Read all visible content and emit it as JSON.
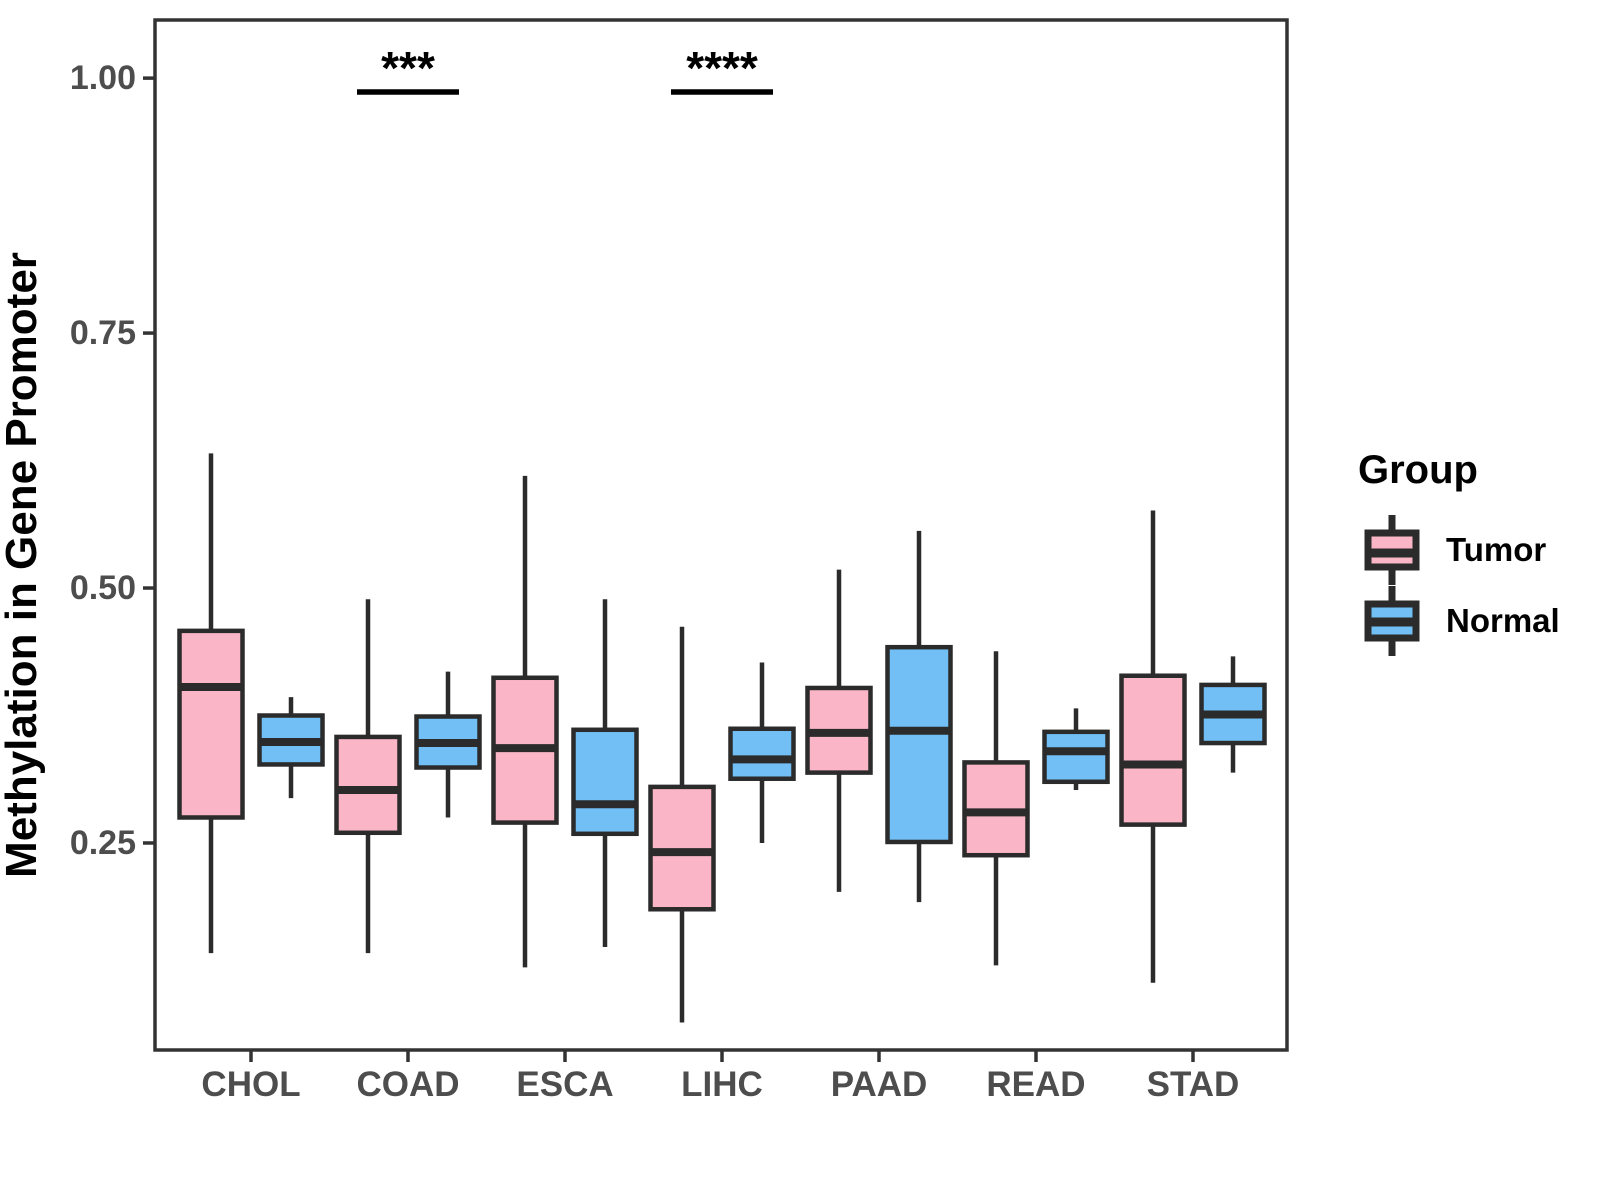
{
  "page": {
    "background": "#ffffff"
  },
  "chart_data": {
    "type": "boxplot",
    "title": "",
    "xlabel": "",
    "ylabel": "Methylation in Gene Promoter",
    "categories": [
      "CHOL",
      "COAD",
      "ESCA",
      "LIHC",
      "PAAD",
      "READ",
      "STAD"
    ],
    "groups": [
      "Tumor",
      "Normal"
    ],
    "group_colors": {
      "Tumor": "#FAB6C6",
      "Normal": "#72BFF5"
    },
    "box_border_color": "#2B2B2B",
    "panel_border_color": "#333333",
    "axis_text_color": "#4D4D4D",
    "axis_title_color": "#000000",
    "ylim": [
      0.047,
      1.057
    ],
    "grid": "off",
    "legend_position": "right",
    "yticks": [
      {
        "value": 0.25,
        "label": "0.25"
      },
      {
        "value": 0.5,
        "label": "0.50"
      },
      {
        "value": 0.75,
        "label": "0.75"
      },
      {
        "value": 1.0,
        "label": "1.00"
      }
    ],
    "series": [
      {
        "name": "Tumor",
        "boxes": [
          {
            "category": "CHOL",
            "low": 0.142,
            "q1": 0.275,
            "median": 0.403,
            "q3": 0.458,
            "high": 0.632
          },
          {
            "category": "COAD",
            "low": 0.142,
            "q1": 0.26,
            "median": 0.302,
            "q3": 0.354,
            "high": 0.489
          },
          {
            "category": "ESCA",
            "low": 0.128,
            "q1": 0.27,
            "median": 0.343,
            "q3": 0.412,
            "high": 0.61
          },
          {
            "category": "LIHC",
            "low": 0.074,
            "q1": 0.185,
            "median": 0.241,
            "q3": 0.305,
            "high": 0.462
          },
          {
            "category": "PAAD",
            "low": 0.202,
            "q1": 0.319,
            "median": 0.358,
            "q3": 0.402,
            "high": 0.518
          },
          {
            "category": "READ",
            "low": 0.13,
            "q1": 0.238,
            "median": 0.28,
            "q3": 0.329,
            "high": 0.438
          },
          {
            "category": "STAD",
            "low": 0.113,
            "q1": 0.268,
            "median": 0.327,
            "q3": 0.414,
            "high": 0.576
          }
        ]
      },
      {
        "name": "Normal",
        "boxes": [
          {
            "category": "CHOL",
            "low": 0.294,
            "q1": 0.327,
            "median": 0.349,
            "q3": 0.375,
            "high": 0.393
          },
          {
            "category": "COAD",
            "low": 0.275,
            "q1": 0.324,
            "median": 0.348,
            "q3": 0.374,
            "high": 0.418
          },
          {
            "category": "ESCA",
            "low": 0.148,
            "q1": 0.259,
            "median": 0.288,
            "q3": 0.361,
            "high": 0.489
          },
          {
            "category": "LIHC",
            "low": 0.25,
            "q1": 0.313,
            "median": 0.332,
            "q3": 0.362,
            "high": 0.427
          },
          {
            "category": "PAAD",
            "low": 0.192,
            "q1": 0.251,
            "median": 0.36,
            "q3": 0.442,
            "high": 0.556
          },
          {
            "category": "READ",
            "low": 0.302,
            "q1": 0.31,
            "median": 0.34,
            "q3": 0.359,
            "high": 0.382
          },
          {
            "category": "STAD",
            "low": 0.319,
            "q1": 0.348,
            "median": 0.376,
            "q3": 0.405,
            "high": 0.433
          }
        ]
      }
    ],
    "significance": [
      {
        "category": "COAD",
        "label": "***"
      },
      {
        "category": "LIHC",
        "label": "****"
      }
    ],
    "legend": {
      "title": "Group",
      "entries": [
        {
          "label": "Tumor"
        },
        {
          "label": "Normal"
        }
      ]
    }
  }
}
